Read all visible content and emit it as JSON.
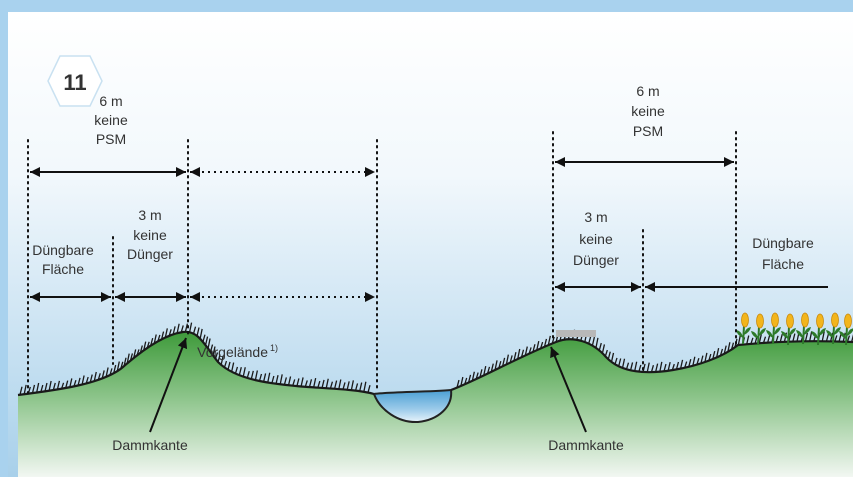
{
  "badge": {
    "number": "11"
  },
  "left": {
    "width_top": "6 m",
    "no_psm_line1": "keine",
    "no_psm_line2": "PSM",
    "fertile_line1": "Düngbare",
    "fertile_line2": "Fläche",
    "width_mid": "3 m",
    "no_fert_line1": "keine",
    "no_fert_line2": "Dünger",
    "foreland": "Vorgelände",
    "foreland_note": "1)",
    "dam_edge": "Dammkante"
  },
  "right": {
    "width_top": "6 m",
    "no_psm_line1": "keine",
    "no_psm_line2": "PSM",
    "width_mid": "3 m",
    "no_fert_line1": "keine",
    "no_fert_line2": "Dünger",
    "fertile_line1": "Düngbare",
    "fertile_line2": "Fläche",
    "dam_edge": "Dammkante"
  },
  "colors": {
    "frame": "#a9d2ee",
    "sky_top": "#ffffff",
    "sky_bottom": "#a8d0ea",
    "grass_top": "#3e9a3a",
    "grass_bottom": "#f2f7f2",
    "water": "#6fb4dd",
    "flower": "#f2b51c",
    "badge": "#ffffff"
  }
}
